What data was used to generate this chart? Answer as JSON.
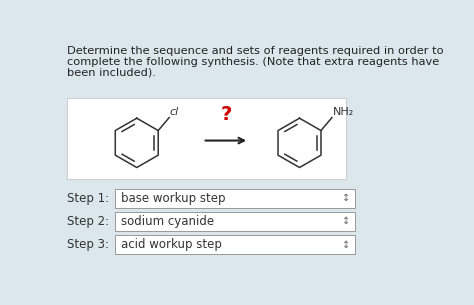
{
  "bg_color": "#dbe6ed",
  "title_lines": [
    "Determine the sequence and sets of reagents required in order to",
    "complete the following synthesis. (Note that extra reagents have",
    "been included)."
  ],
  "title_fontsize": 8.2,
  "chem_box_color": "#ffffff",
  "question_mark": "?",
  "question_mark_color": "#cc0000",
  "steps": [
    {
      "label": "Step 1:",
      "text": "base workup step"
    },
    {
      "label": "Step 2:",
      "text": "sodium cyanide"
    },
    {
      "label": "Step 3:",
      "text": "acid workup step"
    }
  ],
  "step_fontsize": 8.5,
  "step_box_color": "#ffffff",
  "step_box_border": "#999999",
  "step_label_color": "#333333",
  "step_text_color": "#333333",
  "divider_symbol": "↕",
  "mol_line_color": "#333333",
  "label_cl": "cl",
  "label_nh2": "NH₂"
}
